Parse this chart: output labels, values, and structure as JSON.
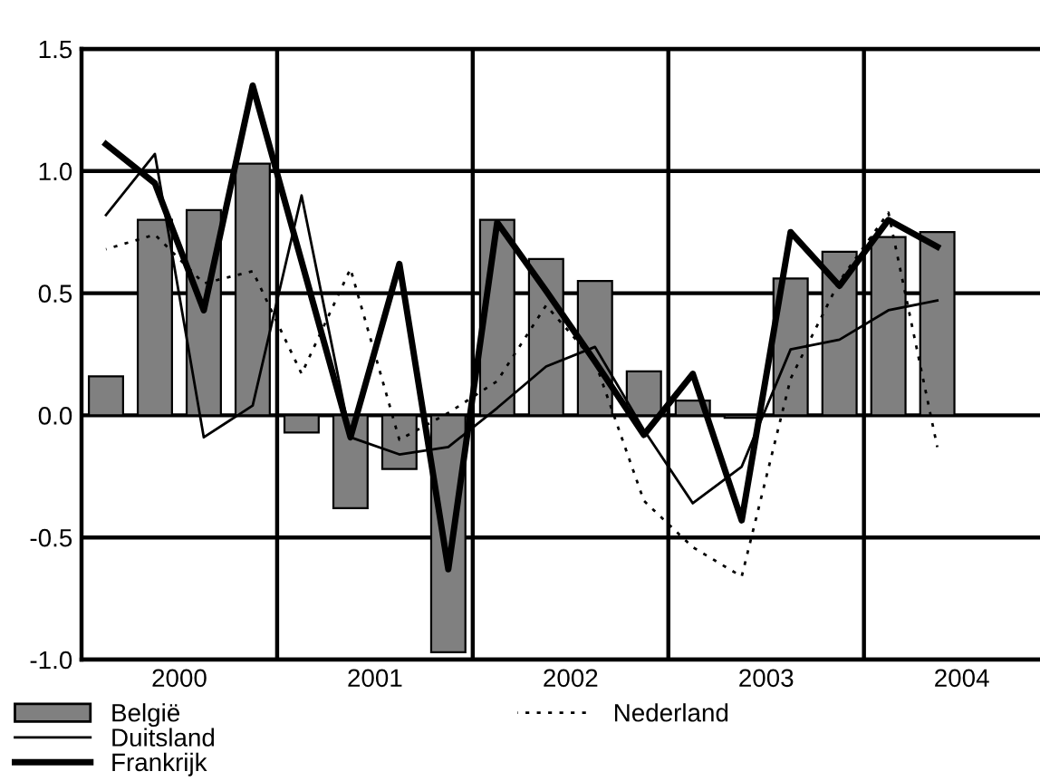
{
  "chart_data": {
    "type": "bar",
    "x": [
      2000.125,
      2000.375,
      2000.625,
      2000.875,
      2001.125,
      2001.375,
      2001.625,
      2001.875,
      2002.125,
      2002.375,
      2002.625,
      2002.875,
      2003.125,
      2003.375,
      2003.625,
      2003.875,
      2004.125,
      2004.375
    ],
    "series": [
      {
        "name": "België",
        "color": "#808080",
        "values": [
          0.16,
          0.8,
          0.84,
          1.03,
          -0.07,
          -0.38,
          -0.22,
          -0.97,
          0.8,
          0.64,
          0.55,
          0.18,
          0.06,
          -0.01,
          0.56,
          0.67,
          0.73,
          0.75
        ]
      },
      {
        "name": "Duitsland",
        "type": "line",
        "color": "#000000",
        "line_style": "solid",
        "values": [
          0.82,
          1.07,
          -0.09,
          0.04,
          0.9,
          -0.09,
          -0.16,
          -0.13,
          0.03,
          0.2,
          0.28,
          -0.06,
          -0.36,
          -0.21,
          0.27,
          0.31,
          0.43,
          0.47
        ]
      },
      {
        "name": "Frankrijk",
        "type": "line",
        "color": "#000000",
        "line_style": "solid",
        "values": [
          1.11,
          0.95,
          0.43,
          1.35,
          0.63,
          -0.09,
          0.62,
          -0.63,
          0.79,
          0.51,
          0.22,
          -0.08,
          0.17,
          -0.43,
          0.75,
          0.53,
          0.8,
          0.69
        ]
      },
      {
        "name": "Nederland",
        "type": "line",
        "color": "#000000",
        "line_style": "dashed",
        "values": [
          0.68,
          0.74,
          0.54,
          0.59,
          0.17,
          0.6,
          -0.1,
          0.01,
          0.14,
          0.45,
          0.22,
          -0.35,
          -0.54,
          -0.66,
          0.15,
          0.55,
          0.83,
          -0.13
        ]
      }
    ],
    "xlim": [
      2000.0,
      2004.9
    ],
    "xticks": [
      {
        "value": 2000.5,
        "label": "2000"
      },
      {
        "value": 2001.5,
        "label": "2001"
      },
      {
        "value": 2002.5,
        "label": "2002"
      },
      {
        "value": 2003.5,
        "label": "2003"
      },
      {
        "value": 2004.5,
        "label": "2004"
      }
    ],
    "ylim": [
      -1.0,
      1.5
    ],
    "yticks": [
      {
        "value": -1.0,
        "label": "-1.0"
      },
      {
        "value": -0.5,
        "label": "-0.5"
      },
      {
        "value": 0.0,
        "label": "0.0"
      },
      {
        "value": 0.5,
        "label": "0.5"
      },
      {
        "value": 1.0,
        "label": "1.0"
      },
      {
        "value": 1.5,
        "label": "1.5"
      }
    ],
    "ref_lines": [
      {
        "axis": "x",
        "value": 2001,
        "color": "#000000"
      },
      {
        "axis": "x",
        "value": 2002,
        "color": "#000000"
      },
      {
        "axis": "x",
        "value": 2003,
        "color": "#000000"
      },
      {
        "axis": "x",
        "value": 2004,
        "color": "#000000"
      }
    ],
    "grid": "y",
    "legend": "bottom"
  }
}
